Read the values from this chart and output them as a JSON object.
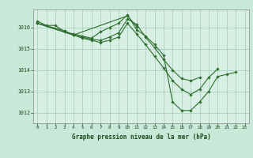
{
  "title": "Graphe pression niveau de la mer (hPa)",
  "bg_color": "#c8e8d8",
  "plot_bg_color": "#d8f0e4",
  "grid_color": "#a0c8b8",
  "line_color": "#2d6e2d",
  "marker_color": "#2d6e2d",
  "spine_color": "#888888",
  "tick_label_color": "#1a4a1a",
  "title_color": "#1a4a1a",
  "ylim": [
    1011.5,
    1016.85
  ],
  "xlim": [
    -0.5,
    23.5
  ],
  "yticks": [
    1012,
    1013,
    1014,
    1015,
    1016
  ],
  "xticks": [
    0,
    1,
    2,
    3,
    4,
    5,
    6,
    7,
    8,
    9,
    10,
    11,
    12,
    13,
    14,
    15,
    16,
    17,
    18,
    19,
    20,
    21,
    22,
    23
  ],
  "series": [
    [
      1016.3,
      1016.1,
      1016.1,
      1015.8,
      1015.7,
      1015.6,
      1015.5,
      1015.8,
      1016.0,
      1016.2,
      1016.6,
      1015.9,
      1015.6,
      1015.2,
      1014.7,
      1012.5,
      1012.1,
      1012.1,
      1012.5,
      1013.0,
      1013.7,
      1013.8,
      1013.9,
      null
    ],
    [
      1016.2,
      null,
      null,
      1015.85,
      1015.65,
      null,
      null,
      null,
      null,
      null,
      1016.55,
      1016.05,
      null,
      null,
      null,
      null,
      null,
      null,
      null,
      null,
      null,
      null,
      null,
      null
    ],
    [
      1016.2,
      null,
      null,
      null,
      1015.65,
      1015.55,
      1015.45,
      1015.4,
      1015.55,
      1015.75,
      1016.4,
      1016.15,
      1015.55,
      1015.05,
      1014.5,
      1014.0,
      1013.6,
      1013.5,
      1013.65,
      null,
      null,
      null,
      null,
      null
    ],
    [
      1016.2,
      null,
      null,
      null,
      1015.65,
      1015.5,
      1015.4,
      1015.3,
      1015.4,
      1015.55,
      1016.2,
      1015.7,
      1015.2,
      1014.65,
      1014.1,
      1013.5,
      1013.1,
      1012.85,
      1013.1,
      1013.65,
      1014.05,
      null,
      null,
      null
    ]
  ]
}
